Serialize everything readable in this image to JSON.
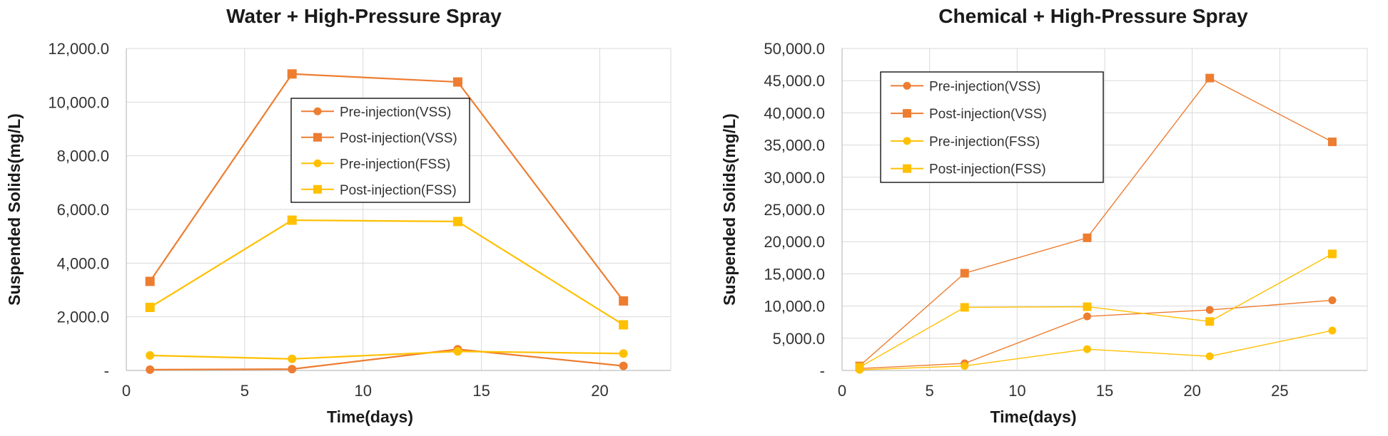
{
  "chart_data": [
    {
      "type": "line",
      "title": "Water + High-Pressure Spray",
      "xlabel": "Time(days)",
      "ylabel": "Suspended Solids(mg/L)",
      "xlim": [
        0,
        23
      ],
      "ylim": [
        0,
        12000
      ],
      "x_ticks": [
        0,
        5,
        10,
        15,
        20
      ],
      "y_ticks": [
        0,
        2000,
        4000,
        6000,
        8000,
        10000,
        12000
      ],
      "x_tick_labels": [
        "0",
        "5",
        "10",
        "15",
        "20"
      ],
      "y_tick_labels": [
        "-",
        "2,000.0",
        "4,000.0",
        "6,000.0",
        "8,000.0",
        "10,000.0",
        "12,000.0"
      ],
      "grid": true,
      "legend_position": "top-center",
      "series": [
        {
          "name": "Pre-injection(VSS)",
          "marker": "circle",
          "color": "#ED7D31",
          "x": [
            1,
            7,
            14,
            21
          ],
          "y": [
            30,
            50,
            790,
            170
          ]
        },
        {
          "name": "Post-injection(VSS)",
          "marker": "square",
          "color": "#ED7D31",
          "x": [
            1,
            7,
            14,
            21
          ],
          "y": [
            3320,
            11050,
            10750,
            2590
          ]
        },
        {
          "name": "Pre-injection(FSS)",
          "marker": "circle",
          "color": "#FFC000",
          "x": [
            1,
            7,
            14,
            21
          ],
          "y": [
            560,
            430,
            710,
            630
          ]
        },
        {
          "name": "Post-injection(FSS)",
          "marker": "square",
          "color": "#FFC000",
          "x": [
            1,
            7,
            14,
            21
          ],
          "y": [
            2350,
            5600,
            5550,
            1700
          ]
        }
      ]
    },
    {
      "type": "line",
      "title": "Chemical + High-Pressure Spray",
      "xlabel": "Time(days)",
      "ylabel": "Suspended Solids(mg/L)",
      "xlim": [
        0,
        30
      ],
      "ylim": [
        0,
        50000
      ],
      "x_ticks": [
        0,
        5,
        10,
        15,
        20,
        25
      ],
      "y_ticks": [
        0,
        5000,
        10000,
        15000,
        20000,
        25000,
        30000,
        35000,
        40000,
        45000,
        50000
      ],
      "x_tick_labels": [
        "0",
        "5",
        "10",
        "15",
        "20",
        "25"
      ],
      "y_tick_labels": [
        "-",
        "5,000.0",
        "10,000.0",
        "15,000.0",
        "20,000.0",
        "25,000.0",
        "30,000.0",
        "35,000.0",
        "40,000.0",
        "45,000.0",
        "50,000.0"
      ],
      "grid": true,
      "legend_position": "top-left",
      "series": [
        {
          "name": "Pre-injection(VSS)",
          "marker": "circle",
          "color": "#ED7D31",
          "x": [
            1,
            7,
            14,
            21,
            28
          ],
          "y": [
            300,
            1100,
            8400,
            9400,
            10900
          ]
        },
        {
          "name": "Post-injection(VSS)",
          "marker": "square",
          "color": "#ED7D31",
          "x": [
            1,
            7,
            14,
            21,
            28
          ],
          "y": [
            700,
            15100,
            20600,
            45400,
            35500
          ]
        },
        {
          "name": "Pre-injection(FSS)",
          "marker": "circle",
          "color": "#FFC000",
          "x": [
            1,
            7,
            14,
            21,
            28
          ],
          "y": [
            100,
            700,
            3300,
            2200,
            6200
          ]
        },
        {
          "name": "Post-injection(FSS)",
          "marker": "square",
          "color": "#FFC000",
          "x": [
            1,
            7,
            14,
            21,
            28
          ],
          "y": [
            500,
            9800,
            9900,
            7600,
            18100
          ]
        }
      ]
    }
  ]
}
